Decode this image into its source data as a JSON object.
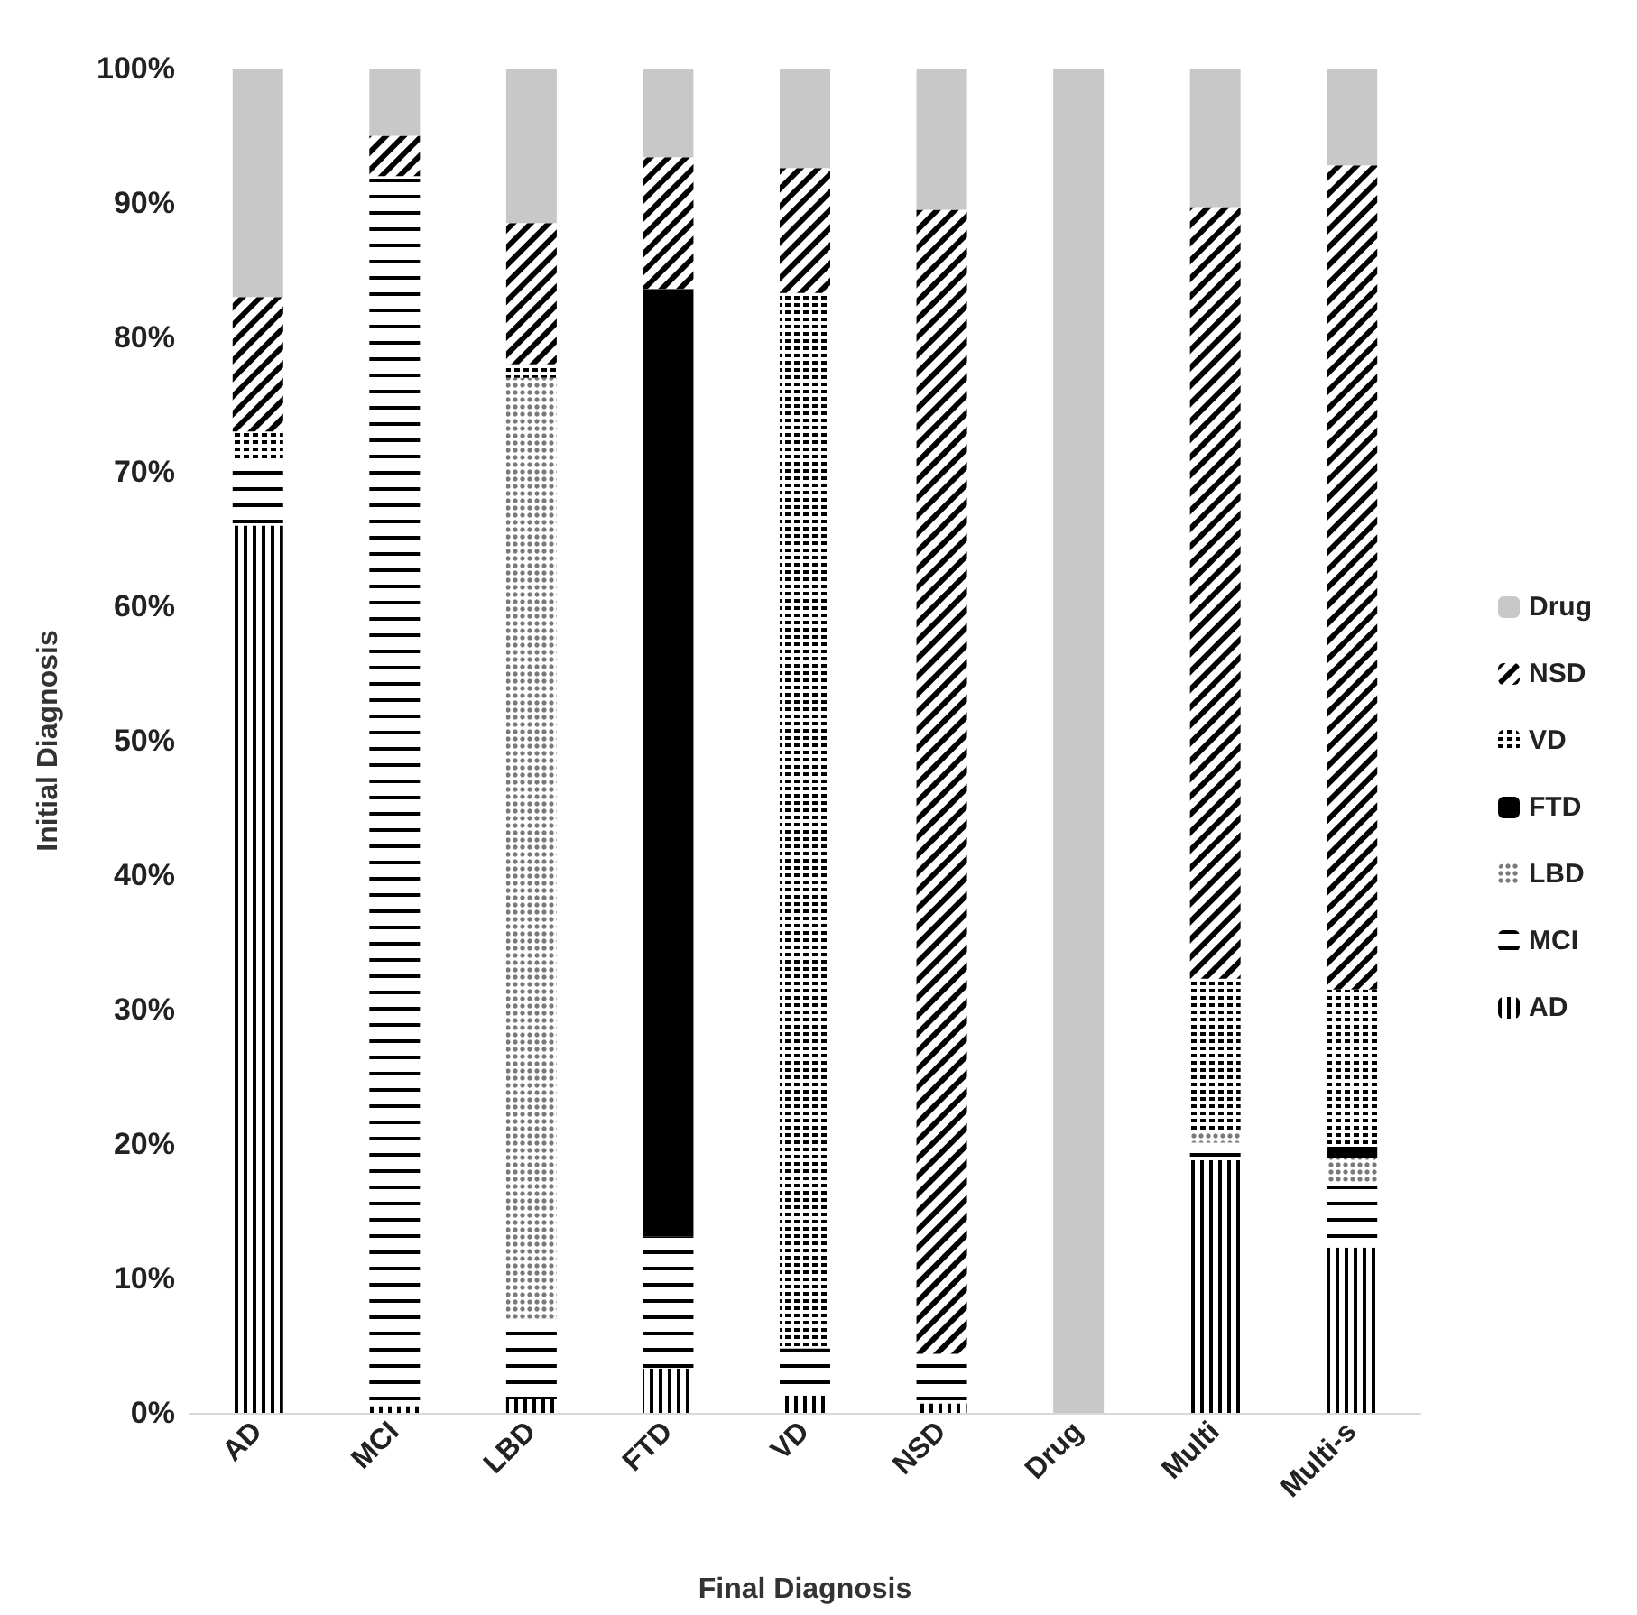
{
  "chart_data": {
    "type": "bar",
    "stacked": true,
    "xlabel": "Final Diagnosis",
    "ylabel": "Initial Diagnosis",
    "categories": [
      "AD",
      "MCI",
      "LBD",
      "FTD",
      "VD",
      "NSD",
      "Drug",
      "Multi",
      "Multi-s"
    ],
    "series": [
      {
        "name": "AD",
        "color": "#000000",
        "values": [
          66,
          0.5,
          1,
          3.3,
          1.3,
          0.7,
          null,
          18.8,
          12.3
        ]
      },
      {
        "name": "MCI",
        "color": "#000000",
        "values": [
          5,
          91.5,
          6,
          9.8,
          3.5,
          3.7,
          null,
          1.3,
          4.9
        ]
      },
      {
        "name": "LBD",
        "color": "#7a7a7a",
        "values": [
          null,
          null,
          70,
          null,
          null,
          null,
          null,
          0.7,
          1.8
        ]
      },
      {
        "name": "FTD",
        "color": "#000000",
        "values": [
          null,
          null,
          null,
          70.5,
          null,
          null,
          null,
          null,
          0.8
        ]
      },
      {
        "name": "VD",
        "color": "#000000",
        "values": [
          2,
          null,
          1,
          null,
          78.5,
          null,
          null,
          11.5,
          11.7
        ]
      },
      {
        "name": "NSD",
        "color": "#000000",
        "values": [
          10,
          3,
          10.5,
          9.8,
          9.3,
          85.1,
          null,
          57.4,
          61.3
        ]
      },
      {
        "name": "Drug",
        "color": "#c8c8c8",
        "values": [
          17.2,
          5,
          11.5,
          6.6,
          7.4,
          10.5,
          100,
          10.3,
          7.2
        ]
      }
    ],
    "ylim": [
      0,
      100
    ],
    "yticks": [
      {
        "value": 0,
        "label": "0%"
      },
      {
        "value": 10,
        "label": "10%"
      },
      {
        "value": 20,
        "label": "20%"
      },
      {
        "value": 30,
        "label": "30%"
      },
      {
        "value": 40,
        "label": "40%"
      },
      {
        "value": 50,
        "label": "50%"
      },
      {
        "value": 60,
        "label": "60%"
      },
      {
        "value": 70,
        "label": "70%"
      },
      {
        "value": 80,
        "label": "80%"
      },
      {
        "value": 90,
        "label": "90%"
      },
      {
        "value": 100,
        "label": "100%"
      }
    ],
    "grid": false,
    "legend": "right"
  }
}
